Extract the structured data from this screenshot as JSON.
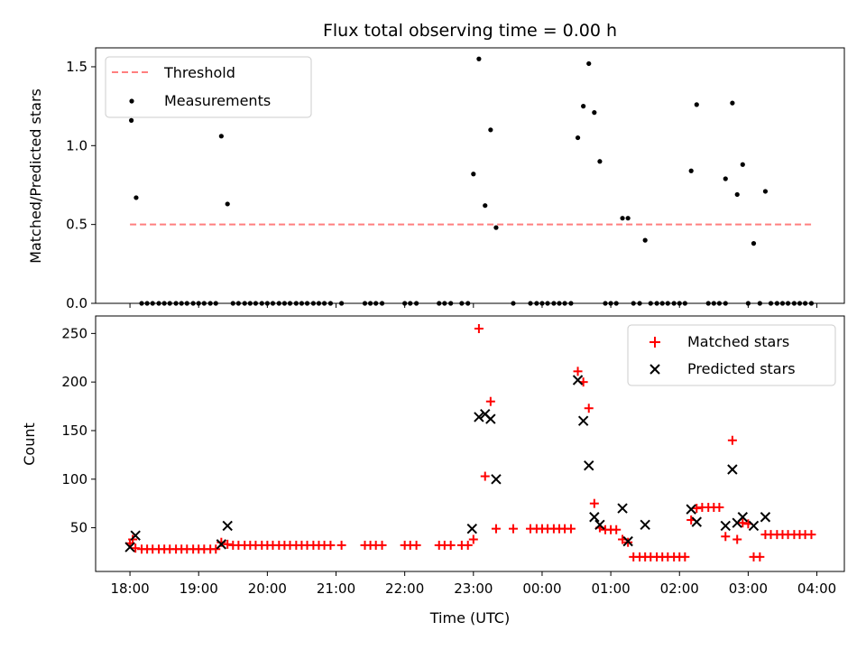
{
  "chart_data": [
    {
      "type": "scatter",
      "title": "Flux total observing time = 0.00 h",
      "xlabel": "",
      "ylabel": "Matched/Predicted stars",
      "ylim": [
        0,
        1.62
      ],
      "yticks": [
        "0.0",
        "0.5",
        "1.0",
        "1.5"
      ],
      "legend_position": "upper-left",
      "series": [
        {
          "name": "Threshold",
          "style": "dashed-line",
          "color": "#ff7f7f",
          "points": [
            [
              18.0,
              0.5
            ],
            [
              27.95,
              0.5
            ]
          ]
        },
        {
          "name": "Measurements",
          "style": "dot",
          "color": "#000000",
          "points": [
            [
              18.02,
              1.16
            ],
            [
              18.04,
              1.28
            ],
            [
              18.09,
              0.67
            ],
            [
              18.17,
              0
            ],
            [
              18.25,
              0
            ],
            [
              18.33,
              0
            ],
            [
              18.42,
              0
            ],
            [
              18.5,
              0
            ],
            [
              18.58,
              0
            ],
            [
              18.67,
              0
            ],
            [
              18.75,
              0
            ],
            [
              18.83,
              0
            ],
            [
              18.92,
              0
            ],
            [
              19.0,
              0
            ],
            [
              19.08,
              0
            ],
            [
              19.17,
              0
            ],
            [
              19.25,
              0
            ],
            [
              19.33,
              1.06
            ],
            [
              19.42,
              0.63
            ],
            [
              19.5,
              0
            ],
            [
              19.58,
              0
            ],
            [
              19.67,
              0
            ],
            [
              19.75,
              0
            ],
            [
              19.83,
              0
            ],
            [
              19.92,
              0
            ],
            [
              20.0,
              0
            ],
            [
              20.08,
              0
            ],
            [
              20.17,
              0
            ],
            [
              20.25,
              0
            ],
            [
              20.33,
              0
            ],
            [
              20.42,
              0
            ],
            [
              20.5,
              0
            ],
            [
              20.58,
              0
            ],
            [
              20.67,
              0
            ],
            [
              20.75,
              0
            ],
            [
              20.83,
              0
            ],
            [
              20.92,
              0
            ],
            [
              21.08,
              0
            ],
            [
              21.42,
              0
            ],
            [
              21.5,
              0
            ],
            [
              21.58,
              0
            ],
            [
              21.67,
              0
            ],
            [
              22.0,
              0
            ],
            [
              22.08,
              0
            ],
            [
              22.17,
              0
            ],
            [
              22.5,
              0
            ],
            [
              22.58,
              0
            ],
            [
              22.67,
              0
            ],
            [
              22.83,
              0
            ],
            [
              22.92,
              0
            ],
            [
              23.0,
              0.82
            ],
            [
              23.08,
              1.55
            ],
            [
              23.17,
              0.62
            ],
            [
              23.25,
              1.1
            ],
            [
              23.33,
              0.48
            ],
            [
              23.58,
              0
            ],
            [
              23.83,
              0
            ],
            [
              23.92,
              0
            ],
            [
              24.0,
              0
            ],
            [
              24.08,
              0
            ],
            [
              24.17,
              0
            ],
            [
              24.25,
              0
            ],
            [
              24.33,
              0
            ],
            [
              24.42,
              0
            ],
            [
              24.52,
              1.05
            ],
            [
              24.6,
              1.25
            ],
            [
              24.68,
              1.52
            ],
            [
              24.76,
              1.21
            ],
            [
              24.84,
              0.9
            ],
            [
              24.92,
              0
            ],
            [
              25.0,
              0
            ],
            [
              25.08,
              0
            ],
            [
              25.17,
              0.54
            ],
            [
              25.25,
              0.54
            ],
            [
              25.33,
              0
            ],
            [
              25.42,
              0
            ],
            [
              25.5,
              0.4
            ],
            [
              25.58,
              0
            ],
            [
              25.67,
              0
            ],
            [
              25.75,
              0
            ],
            [
              25.83,
              0
            ],
            [
              25.92,
              0
            ],
            [
              26.0,
              0
            ],
            [
              26.08,
              0
            ],
            [
              26.17,
              0.84
            ],
            [
              26.25,
              1.26
            ],
            [
              26.42,
              0
            ],
            [
              26.5,
              0
            ],
            [
              26.58,
              0
            ],
            [
              26.67,
              0
            ],
            [
              26.67,
              0.79
            ],
            [
              26.77,
              1.27
            ],
            [
              26.84,
              0.69
            ],
            [
              26.92,
              0.88
            ],
            [
              27.0,
              0
            ],
            [
              27.08,
              0.38
            ],
            [
              27.17,
              0
            ],
            [
              27.25,
              0.71
            ],
            [
              27.33,
              0
            ],
            [
              27.42,
              0
            ],
            [
              27.5,
              0
            ],
            [
              27.58,
              0
            ],
            [
              27.67,
              0
            ],
            [
              27.75,
              0
            ],
            [
              27.83,
              0
            ],
            [
              27.92,
              0
            ]
          ]
        }
      ]
    },
    {
      "type": "scatter",
      "title": "",
      "xlabel": "Time (UTC)",
      "ylabel": "Count",
      "ylim": [
        5,
        268
      ],
      "xlim": [
        17.5,
        28.4
      ],
      "yticks": [
        "50",
        "100",
        "150",
        "200",
        "250"
      ],
      "xticks": [
        "18:00",
        "19:00",
        "20:00",
        "21:00",
        "22:00",
        "23:00",
        "00:00",
        "01:00",
        "02:00",
        "03:00",
        "04:00"
      ],
      "legend_position": "upper-right",
      "series": [
        {
          "name": "Matched stars",
          "marker": "plus",
          "color": "#ff0000",
          "points": [
            [
              18.0,
              34
            ],
            [
              18.04,
              38
            ],
            [
              18.08,
              29
            ],
            [
              18.17,
              28
            ],
            [
              18.25,
              28
            ],
            [
              18.33,
              28
            ],
            [
              18.42,
              28
            ],
            [
              18.5,
              28
            ],
            [
              18.58,
              28
            ],
            [
              18.67,
              28
            ],
            [
              18.75,
              28
            ],
            [
              18.83,
              28
            ],
            [
              18.92,
              28
            ],
            [
              19.0,
              28
            ],
            [
              19.08,
              28
            ],
            [
              19.17,
              28
            ],
            [
              19.25,
              28
            ],
            [
              19.33,
              35
            ],
            [
              19.42,
              33
            ],
            [
              19.5,
              32
            ],
            [
              19.58,
              32
            ],
            [
              19.67,
              32
            ],
            [
              19.75,
              32
            ],
            [
              19.83,
              32
            ],
            [
              19.92,
              32
            ],
            [
              20.0,
              32
            ],
            [
              20.08,
              32
            ],
            [
              20.17,
              32
            ],
            [
              20.25,
              32
            ],
            [
              20.33,
              32
            ],
            [
              20.42,
              32
            ],
            [
              20.5,
              32
            ],
            [
              20.58,
              32
            ],
            [
              20.67,
              32
            ],
            [
              20.75,
              32
            ],
            [
              20.83,
              32
            ],
            [
              20.92,
              32
            ],
            [
              21.08,
              32
            ],
            [
              21.42,
              32
            ],
            [
              21.5,
              32
            ],
            [
              21.58,
              32
            ],
            [
              21.67,
              32
            ],
            [
              22.0,
              32
            ],
            [
              22.08,
              32
            ],
            [
              22.17,
              32
            ],
            [
              22.5,
              32
            ],
            [
              22.58,
              32
            ],
            [
              22.67,
              32
            ],
            [
              22.83,
              32
            ],
            [
              22.92,
              32
            ],
            [
              23.0,
              38
            ],
            [
              23.08,
              255
            ],
            [
              23.17,
              103
            ],
            [
              23.25,
              180
            ],
            [
              23.33,
              49
            ],
            [
              23.58,
              49
            ],
            [
              23.83,
              49
            ],
            [
              23.92,
              49
            ],
            [
              24.0,
              49
            ],
            [
              24.08,
              49
            ],
            [
              24.17,
              49
            ],
            [
              24.25,
              49
            ],
            [
              24.33,
              49
            ],
            [
              24.42,
              49
            ],
            [
              24.52,
              211
            ],
            [
              24.6,
              200
            ],
            [
              24.68,
              173
            ],
            [
              24.76,
              75
            ],
            [
              24.84,
              50
            ],
            [
              24.92,
              48
            ],
            [
              25.0,
              48
            ],
            [
              25.08,
              48
            ],
            [
              25.17,
              38
            ],
            [
              25.25,
              35
            ],
            [
              25.33,
              20
            ],
            [
              25.42,
              20
            ],
            [
              25.5,
              20
            ],
            [
              25.58,
              20
            ],
            [
              25.67,
              20
            ],
            [
              25.75,
              20
            ],
            [
              25.83,
              20
            ],
            [
              25.92,
              20
            ],
            [
              26.0,
              20
            ],
            [
              26.08,
              20
            ],
            [
              26.17,
              58
            ],
            [
              26.25,
              70
            ],
            [
              26.33,
              71
            ],
            [
              26.42,
              71
            ],
            [
              26.5,
              71
            ],
            [
              26.58,
              71
            ],
            [
              26.67,
              41
            ],
            [
              26.77,
              140
            ],
            [
              26.84,
              38
            ],
            [
              26.92,
              55
            ],
            [
              27.0,
              54
            ],
            [
              27.08,
              20
            ],
            [
              27.17,
              20
            ],
            [
              27.25,
              43
            ],
            [
              27.33,
              43
            ],
            [
              27.42,
              43
            ],
            [
              27.5,
              43
            ],
            [
              27.58,
              43
            ],
            [
              27.67,
              43
            ],
            [
              27.75,
              43
            ],
            [
              27.83,
              43
            ],
            [
              27.92,
              43
            ]
          ]
        },
        {
          "name": "Predicted stars",
          "marker": "x",
          "color": "#000000",
          "points": [
            [
              18.0,
              30
            ],
            [
              18.08,
              42
            ],
            [
              19.33,
              33
            ],
            [
              19.42,
              52
            ],
            [
              22.98,
              49
            ],
            [
              23.08,
              164
            ],
            [
              23.17,
              167
            ],
            [
              23.25,
              162
            ],
            [
              23.33,
              100
            ],
            [
              24.52,
              202
            ],
            [
              24.6,
              160
            ],
            [
              24.68,
              114
            ],
            [
              24.76,
              61
            ],
            [
              24.84,
              53
            ],
            [
              25.17,
              70
            ],
            [
              25.25,
              36
            ],
            [
              25.5,
              53
            ],
            [
              26.17,
              69
            ],
            [
              26.25,
              56
            ],
            [
              26.67,
              52
            ],
            [
              26.77,
              110
            ],
            [
              26.84,
              55
            ],
            [
              26.92,
              61
            ],
            [
              27.08,
              52
            ],
            [
              27.25,
              61
            ]
          ]
        }
      ]
    }
  ]
}
